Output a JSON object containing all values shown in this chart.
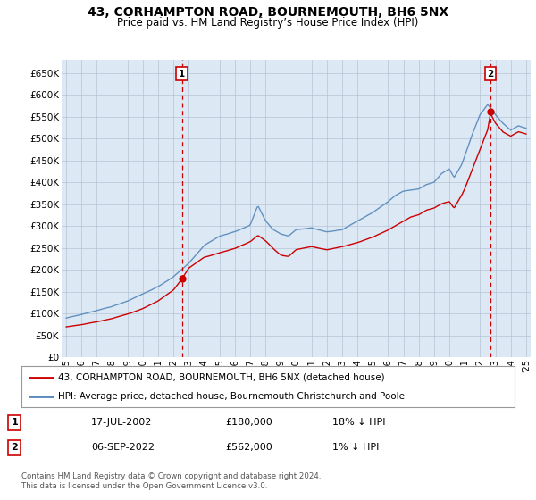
{
  "title": "43, CORHAMPTON ROAD, BOURNEMOUTH, BH6 5NX",
  "subtitle": "Price paid vs. HM Land Registry’s House Price Index (HPI)",
  "ylim": [
    0,
    680000
  ],
  "yticks": [
    0,
    50000,
    100000,
    150000,
    200000,
    250000,
    300000,
    350000,
    400000,
    450000,
    500000,
    550000,
    600000,
    650000
  ],
  "sale1_year": 2002.54,
  "sale1_value": 180000,
  "sale2_year": 2022.68,
  "sale2_value": 562000,
  "red_color": "#cc0000",
  "blue_color": "#5588bb",
  "dashed_color": "#cc0000",
  "chart_bg": "#dde8f5",
  "legend1_label": "43, CORHAMPTON ROAD, BOURNEMOUTH, BH6 5NX (detached house)",
  "legend2_label": "HPI: Average price, detached house, Bournemouth Christchurch and Poole",
  "table_row1": [
    "1",
    "17-JUL-2002",
    "£180,000",
    "18% ↓ HPI"
  ],
  "table_row2": [
    "2",
    "06-SEP-2022",
    "£562,000",
    "1% ↓ HPI"
  ],
  "footnote": "Contains HM Land Registry data © Crown copyright and database right 2024.\nThis data is licensed under the Open Government Licence v3.0.",
  "background_color": "#ffffff",
  "grid_color": "#aabbcc"
}
